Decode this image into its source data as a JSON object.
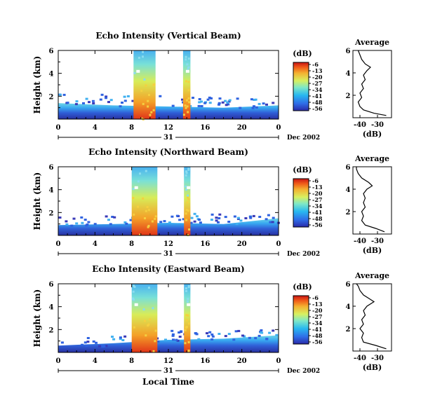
{
  "chart_data": [
    {
      "type": "heatmap",
      "title": "Echo Intensity (Vertical Beam)",
      "ylabel": "Height (km)",
      "ylim": [
        0,
        6
      ],
      "y_ticks": [
        "2",
        "4",
        "6"
      ],
      "x_ticks": [
        "0",
        "4",
        "8",
        "12",
        "16",
        "20",
        "0"
      ],
      "xlim": [
        0,
        24
      ],
      "date_day": "31",
      "date_label": "Dec 2002",
      "colorbar": {
        "unit": "(dB)",
        "ticks": [
          "-6",
          "-13",
          "-20",
          "-27",
          "-34",
          "-41",
          "-48",
          "-56"
        ]
      },
      "echo_columns": [
        {
          "x_start": 8.2,
          "x_end": 10.6,
          "top_km": 6.0
        },
        {
          "x_start": 13.6,
          "x_end": 14.4,
          "top_km": 6.0
        }
      ],
      "boundary_layer_top_km": [
        1.4,
        1.2,
        1.1,
        1.0,
        1.2
      ],
      "average_profile": {
        "title": "Average",
        "xlabel": "(dB)",
        "x_ticks": [
          "-40",
          "-30"
        ],
        "xlim": [
          -44,
          -22
        ],
        "y_ticks": [
          "2",
          "4",
          "6"
        ],
        "ylim": [
          0,
          6
        ],
        "height_km": [
          0.2,
          0.4,
          0.7,
          1.0,
          1.4,
          1.8,
          2.2,
          2.6,
          3.0,
          3.4,
          3.8,
          4.2,
          4.5,
          4.8,
          5.2,
          5.6,
          6.0
        ],
        "value_db": [
          -25,
          -32,
          -38,
          -40,
          -41,
          -39,
          -40,
          -38,
          -39,
          -37,
          -38,
          -36,
          -34,
          -37,
          -39,
          -40,
          -41
        ]
      }
    },
    {
      "type": "heatmap",
      "title": "Echo Intensity (Northward Beam)",
      "ylabel": "Height (km)",
      "ylim": [
        0,
        6
      ],
      "y_ticks": [
        "2",
        "4",
        "6"
      ],
      "x_ticks": [
        "0",
        "4",
        "8",
        "12",
        "16",
        "20",
        "0"
      ],
      "xlim": [
        0,
        24
      ],
      "date_day": "31",
      "date_label": "Dec 2002",
      "colorbar": {
        "unit": "(dB)",
        "ticks": [
          "-6",
          "-13",
          "-20",
          "-27",
          "-34",
          "-41",
          "-48",
          "-56"
        ]
      },
      "echo_columns": [
        {
          "x_start": 8.0,
          "x_end": 10.8,
          "top_km": 6.0
        },
        {
          "x_start": 13.7,
          "x_end": 14.4,
          "top_km": 6.0
        }
      ],
      "boundary_layer_top_km": [
        0.9,
        1.0,
        1.1,
        1.0,
        1.5
      ],
      "average_profile": {
        "title": "Average",
        "xlabel": "(dB)",
        "x_ticks": [
          "-40",
          "-30"
        ],
        "xlim": [
          -44,
          -22
        ],
        "y_ticks": [
          "2",
          "4",
          "6"
        ],
        "ylim": [
          0,
          6
        ],
        "height_km": [
          0.2,
          0.5,
          0.8,
          1.2,
          1.6,
          2.0,
          2.4,
          2.8,
          3.2,
          3.6,
          4.0,
          4.3,
          4.6,
          5.0,
          5.4,
          5.8,
          6.0
        ],
        "value_db": [
          -26,
          -31,
          -37,
          -39,
          -38,
          -39,
          -37,
          -38,
          -37,
          -38,
          -36,
          -33,
          -35,
          -39,
          -41,
          -42,
          -42
        ]
      }
    },
    {
      "type": "heatmap",
      "title": "Echo Intensity (Eastward Beam)",
      "ylabel": "Height (km)",
      "ylim": [
        0,
        6
      ],
      "y_ticks": [
        "2",
        "4",
        "6"
      ],
      "x_ticks": [
        "0",
        "4",
        "8",
        "12",
        "16",
        "20",
        "0"
      ],
      "xlim": [
        0,
        24
      ],
      "xlabel": "Local Time",
      "date_day": "31",
      "date_label": "Dec 2002",
      "colorbar": {
        "unit": "(dB)",
        "ticks": [
          "-6",
          "-13",
          "-20",
          "-27",
          "-34",
          "-41",
          "-48",
          "-56"
        ]
      },
      "echo_columns": [
        {
          "x_start": 8.0,
          "x_end": 10.8,
          "top_km": 6.0
        },
        {
          "x_start": 13.7,
          "x_end": 14.4,
          "top_km": 6.0
        }
      ],
      "boundary_layer_top_km": [
        0.6,
        0.8,
        1.1,
        1.2,
        1.5
      ],
      "average_profile": {
        "title": "Average",
        "xlabel": "(dB)",
        "x_ticks": [
          "-40",
          "-30"
        ],
        "xlim": [
          -44,
          -22
        ],
        "y_ticks": [
          "2",
          "4",
          "6"
        ],
        "ylim": [
          0,
          6
        ],
        "height_km": [
          0.2,
          0.5,
          0.8,
          1.2,
          1.6,
          2.0,
          2.4,
          2.8,
          3.2,
          3.6,
          4.0,
          4.4,
          4.7,
          5.0,
          5.4,
          5.8,
          6.0
        ],
        "value_db": [
          -25,
          -31,
          -38,
          -39,
          -38,
          -40,
          -38,
          -39,
          -37,
          -38,
          -36,
          -32,
          -35,
          -38,
          -40,
          -41,
          -42
        ]
      }
    }
  ]
}
